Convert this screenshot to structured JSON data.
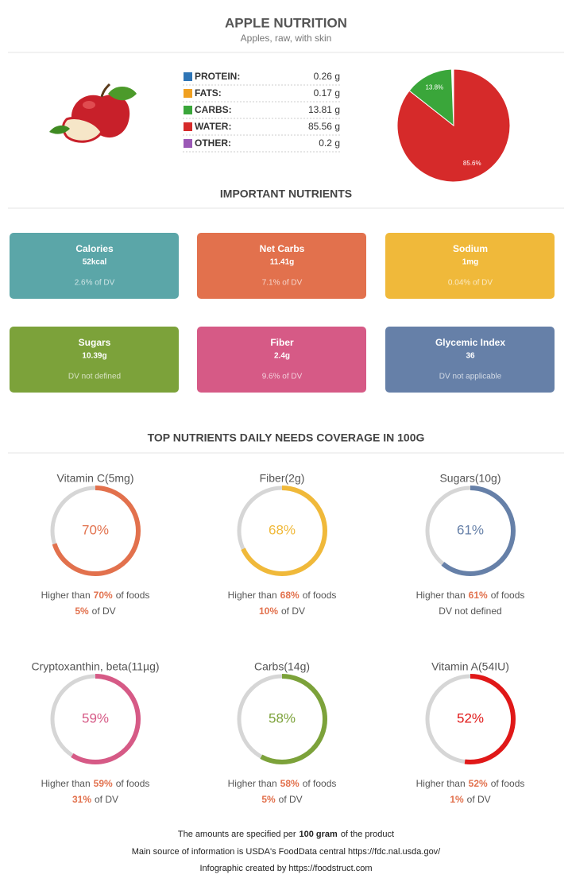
{
  "header": {
    "title": "APPLE NUTRITION",
    "subtitle": "Apples, raw, with skin"
  },
  "composition": {
    "rows": [
      {
        "label": "PROTEIN:",
        "amount": "0.26 g",
        "color": "#2e75b6"
      },
      {
        "label": "FATS:",
        "amount": "0.17 g",
        "color": "#f0a020"
      },
      {
        "label": "CARBS:",
        "amount": "13.81 g",
        "color": "#3aa63a"
      },
      {
        "label": "WATER:",
        "amount": "85.56 g",
        "color": "#d62a2a"
      },
      {
        "label": "OTHER:",
        "amount": "0.2 g",
        "color": "#9b59b6"
      }
    ],
    "pie": {
      "slices": [
        {
          "value": 85.6,
          "label": "85.6%",
          "color": "#d62a2a"
        },
        {
          "value": 13.8,
          "label": "13.8%",
          "color": "#3aa63a"
        }
      ]
    }
  },
  "important": {
    "title": "IMPORTANT NUTRIENTS",
    "cards": [
      {
        "name": "Calories",
        "value": "52kcal",
        "dv": "2.6% of DV",
        "color": "#5ba6a8"
      },
      {
        "name": "Net Carbs",
        "value": "11.41g",
        "dv": "7.1% of DV",
        "color": "#e2714d"
      },
      {
        "name": "Sodium",
        "value": "1mg",
        "dv": "0.04% of DV",
        "color": "#f0b93a"
      },
      {
        "name": "Sugars",
        "value": "10.39g",
        "dv": "DV not defined",
        "color": "#7ca23a"
      },
      {
        "name": "Fiber",
        "value": "2.4g",
        "dv": "9.6% of DV",
        "color": "#d65a86"
      },
      {
        "name": "Glycemic Index",
        "value": "36",
        "dv": "DV not applicable",
        "color": "#6680a8"
      }
    ]
  },
  "coverage": {
    "title": "TOP NUTRIENTS DAILY NEEDS COVERAGE IN 100G",
    "higher_prefix": "Higher than",
    "higher_suffix": "of foods",
    "dv_suffix": "of DV",
    "items": [
      {
        "name": "Vitamin C(5mg)",
        "percent": 70,
        "percent_label": "70%",
        "color": "#e2714d",
        "dv": "5%"
      },
      {
        "name": "Fiber(2g)",
        "percent": 68,
        "percent_label": "68%",
        "color": "#f0b93a",
        "dv": "10%"
      },
      {
        "name": "Sugars(10g)",
        "percent": 61,
        "percent_label": "61%",
        "color": "#6680a8",
        "dv_note": "DV not defined"
      },
      {
        "name": "Cryptoxanthin, beta(11µg)",
        "percent": 59,
        "percent_label": "59%",
        "color": "#d65a86",
        "dv": "31%"
      },
      {
        "name": "Carbs(14g)",
        "percent": 58,
        "percent_label": "58%",
        "color": "#7ca23a",
        "dv": "5%"
      },
      {
        "name": "Vitamin A(54IU)",
        "percent": 52,
        "percent_label": "52%",
        "color": "#e01818",
        "dv": "1%"
      }
    ]
  },
  "footer": {
    "line1_pre": "The amounts are specified per",
    "line1_bold": "100 gram",
    "line1_post": "of the product",
    "line2": "Main source of information is USDA's FoodData central https://fdc.nal.usda.gov/",
    "line3": "Infographic created by https://foodstruct.com"
  }
}
